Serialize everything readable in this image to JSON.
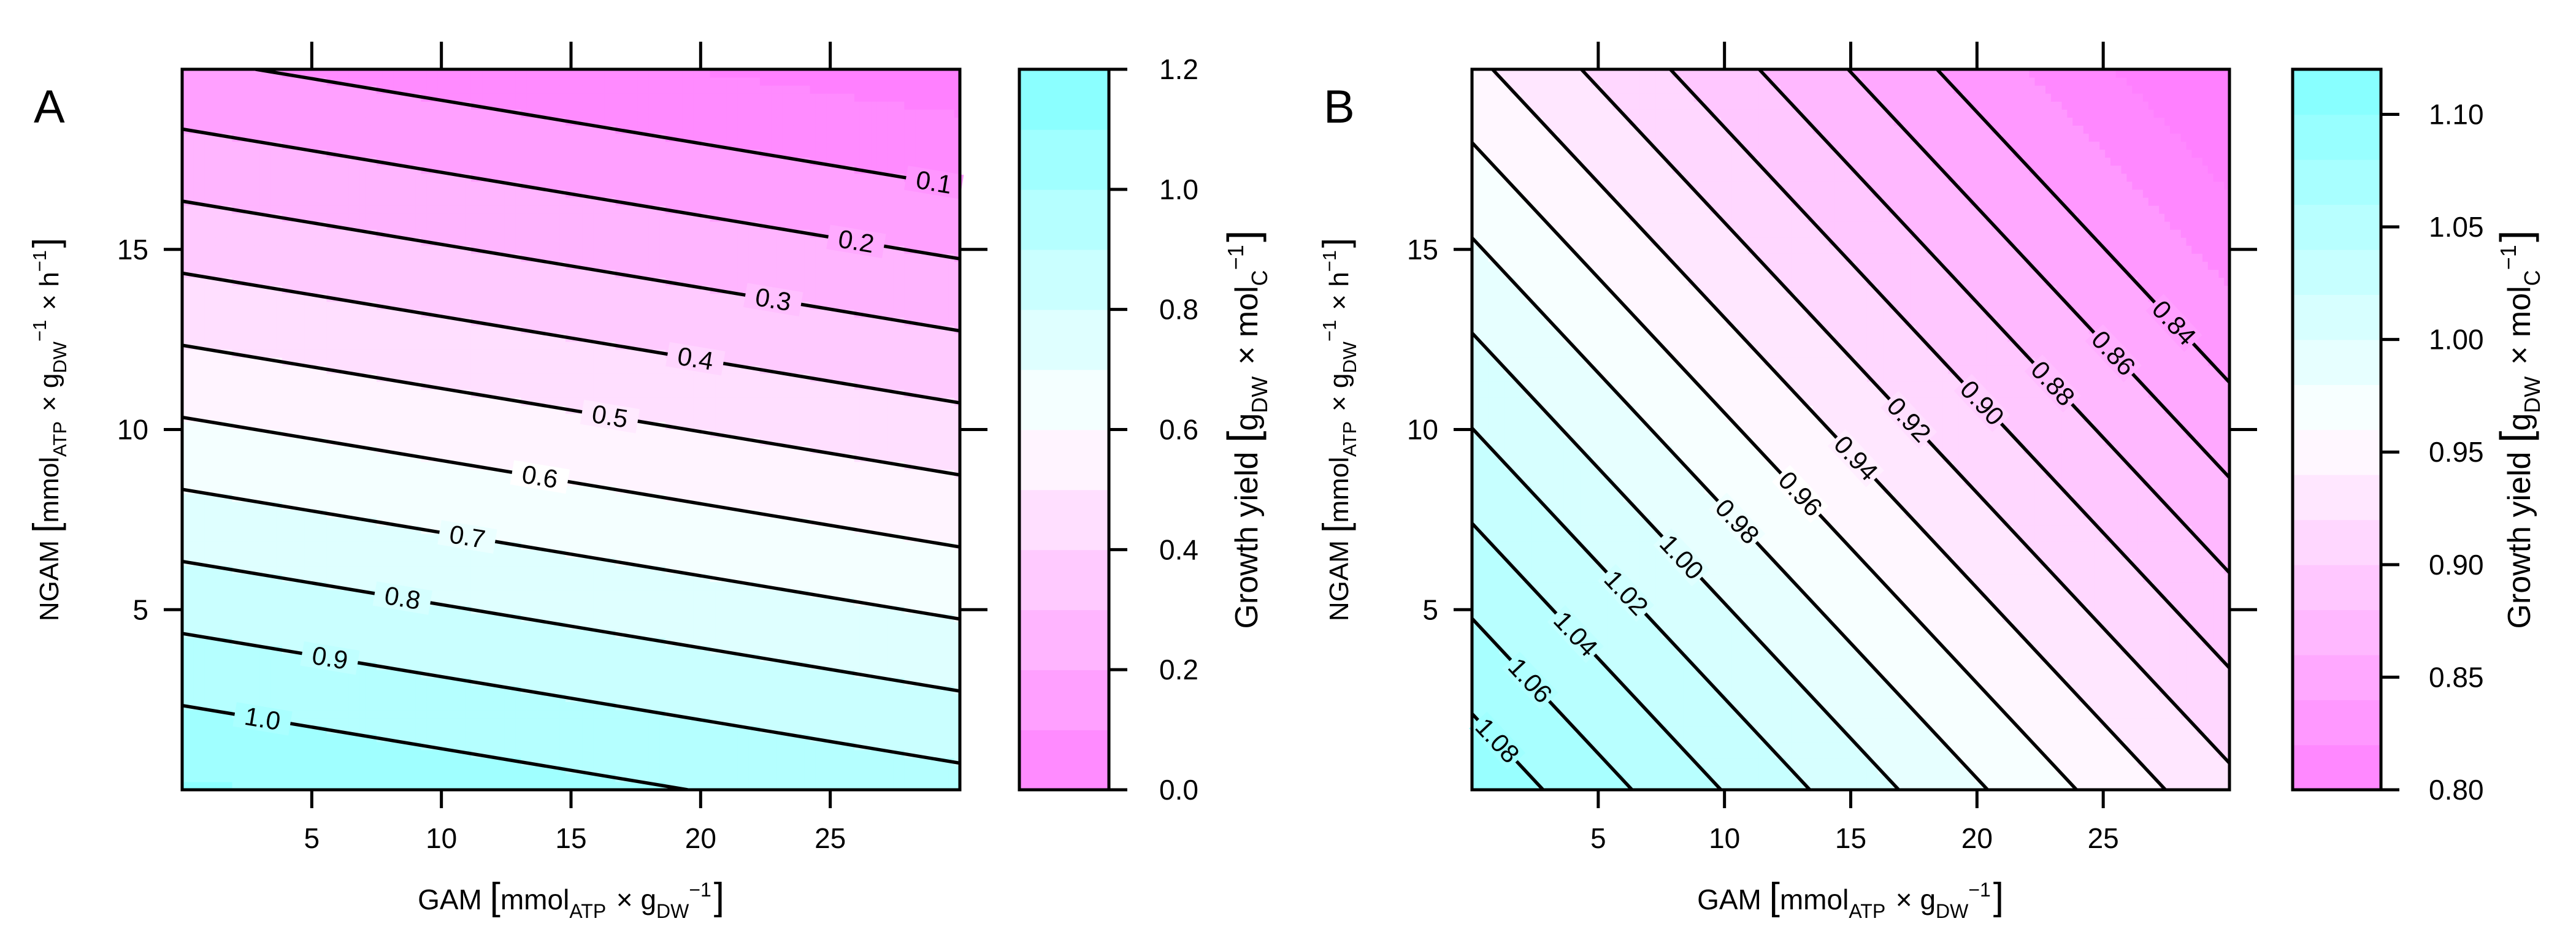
{
  "chart_data": [
    {
      "panel_label": "A",
      "type": "contour",
      "x": {
        "label_main": "GAM",
        "label_unit_parts": [
          "mmol",
          "ATP",
          "×",
          "g",
          "DW",
          "−1"
        ],
        "range": [
          0,
          30
        ],
        "ticks": [
          5,
          10,
          15,
          20,
          25
        ]
      },
      "y": {
        "label_main": "NGAM",
        "label_unit_parts": [
          "mmol",
          "ATP",
          "×",
          "g",
          "DW",
          "−1",
          "×",
          "h",
          "−1"
        ],
        "range": [
          0,
          20
        ],
        "ticks": [
          5,
          10,
          15
        ]
      },
      "z_model": {
        "form": "linear",
        "at_origin": 1.117,
        "per_x": -0.006,
        "per_y": -0.05
      },
      "contours": [
        {
          "level": 0.1,
          "label": "0.1",
          "label_x": 29.0
        },
        {
          "level": 0.2,
          "label": "0.2",
          "label_x": 26.0
        },
        {
          "level": 0.3,
          "label": "0.3",
          "label_x": 22.8
        },
        {
          "level": 0.4,
          "label": "0.4",
          "label_x": 19.8
        },
        {
          "level": 0.5,
          "label": "0.5",
          "label_x": 16.5
        },
        {
          "level": 0.6,
          "label": "0.6",
          "label_x": 13.8
        },
        {
          "level": 0.7,
          "label": "0.7",
          "label_x": 11.0
        },
        {
          "level": 0.8,
          "label": "0.8",
          "label_x": 8.5
        },
        {
          "level": 0.9,
          "label": "0.9",
          "label_x": 5.7
        },
        {
          "level": 1.0,
          "label": "1.0",
          "label_x": 3.1
        },
        {
          "level": 1.117,
          "label": "",
          "label_x": null
        }
      ],
      "colorbar": {
        "label_main": "Growth yield",
        "label_unit_parts": [
          "g",
          "DW",
          "×",
          "mol",
          "C",
          "−1"
        ],
        "range": [
          0,
          1.2
        ],
        "steps": 12,
        "ticks": [
          "0.0",
          "0.2",
          "0.4",
          "0.6",
          "0.8",
          "1.0",
          "1.2"
        ]
      }
    },
    {
      "panel_label": "B",
      "type": "contour",
      "x": {
        "label_main": "GAM",
        "label_unit_parts": [
          "mmol",
          "ATP",
          "×",
          "g",
          "DW",
          "−1"
        ],
        "range": [
          0,
          30
        ],
        "ticks": [
          5,
          10,
          15,
          20,
          25
        ]
      },
      "y": {
        "label_main": "NGAM",
        "label_unit_parts": [
          "mmol",
          "ATP",
          "×",
          "g",
          "DW",
          "−1",
          "×",
          "h",
          "−1"
        ],
        "range": [
          0,
          20
        ],
        "ticks": [
          5,
          10,
          15
        ]
      },
      "z_model": {
        "form": "linear",
        "at_origin": 1.096,
        "per_x": -0.00568,
        "per_y": -0.00757
      },
      "contours": [
        {
          "level": 0.84,
          "label": "0.84",
          "label_x": 27.8
        },
        {
          "level": 0.86,
          "label": "0.86",
          "label_x": 25.4
        },
        {
          "level": 0.88,
          "label": "0.88",
          "label_x": 23.0
        },
        {
          "level": 0.9,
          "label": "0.90",
          "label_x": 20.2
        },
        {
          "level": 0.92,
          "label": "0.92",
          "label_x": 17.3
        },
        {
          "level": 0.94,
          "label": "0.94",
          "label_x": 15.2
        },
        {
          "level": 0.96,
          "label": "0.96",
          "label_x": 13.0
        },
        {
          "level": 0.98,
          "label": "0.98",
          "label_x": 10.5
        },
        {
          "level": 1.0,
          "label": "1.00",
          "label_x": 8.3
        },
        {
          "level": 1.02,
          "label": "1.02",
          "label_x": 6.1
        },
        {
          "level": 1.04,
          "label": "1.04",
          "label_x": 4.1
        },
        {
          "level": 1.06,
          "label": "1.06",
          "label_x": 2.3
        },
        {
          "level": 1.08,
          "label": "1.08",
          "label_x": 1.0
        }
      ],
      "colorbar": {
        "label_main": "Growth yield",
        "label_unit_parts": [
          "g",
          "DW",
          "×",
          "mol",
          "C",
          "−1"
        ],
        "range": [
          0.8,
          1.12
        ],
        "steps": 16,
        "ticks": [
          "0.80",
          "0.85",
          "0.90",
          "0.95",
          "1.00",
          "1.05",
          "1.10"
        ]
      }
    }
  ],
  "colors": {
    "low": "#ff80ff",
    "mid": "#ffffff",
    "high": "#80ffff",
    "line": "#000000",
    "frame": "#000000"
  }
}
